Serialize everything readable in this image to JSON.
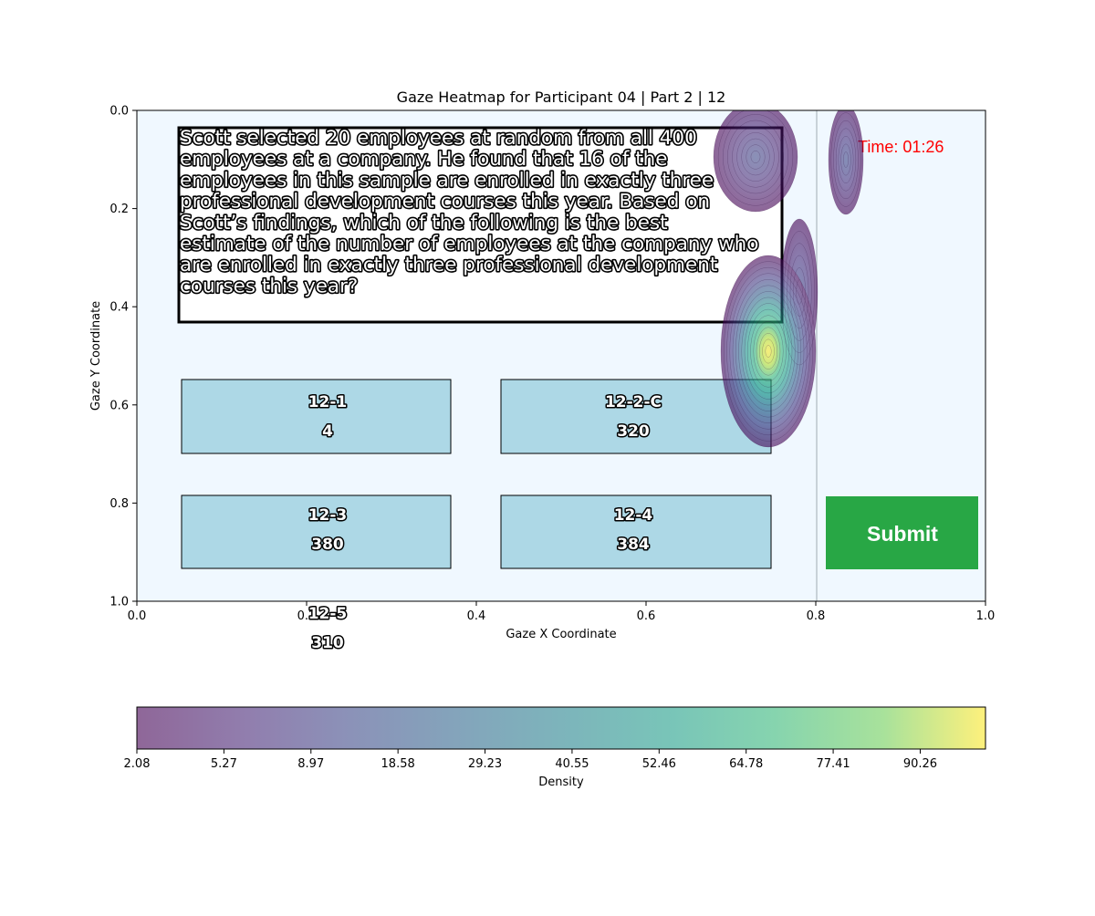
{
  "chart_data": {
    "type": "heatmap",
    "title": "Gaze Heatmap for Participant 04 | Part 2 | 12",
    "xlabel": "Gaze X Coordinate",
    "ylabel": "Gaze Y Coordinate",
    "xlim": [
      0.0,
      1.0
    ],
    "ylim": [
      1.0,
      0.0
    ],
    "x_ticks": [
      "0.0",
      "0.2",
      "0.4",
      "0.6",
      "0.8",
      "1.0"
    ],
    "y_ticks": [
      "0.0",
      "0.2",
      "0.4",
      "0.6",
      "0.8",
      "1.0"
    ],
    "colorbar": {
      "label": "Density",
      "ticks": [
        "2.08",
        "5.27",
        "8.97",
        "18.58",
        "29.23",
        "40.55",
        "52.46",
        "64.78",
        "77.41",
        "90.26"
      ],
      "colormap": "viridis",
      "alpha": 0.6
    },
    "density_peaks": [
      {
        "x": 0.74,
        "y": 0.48,
        "peak": 100
      },
      {
        "x": 0.72,
        "y": 0.1,
        "peak": 25
      },
      {
        "x": 0.835,
        "y": 0.1,
        "peak": 15
      },
      {
        "x": 0.78,
        "y": 0.35,
        "peak": 20
      }
    ]
  },
  "question": {
    "lines": [
      "Scott selected 20 employees at random from all 400",
      "employees at a company. He found that 16 of the",
      "employees in this sample are enrolled in exactly three",
      "professional development courses this year. Based on",
      "Scott’s findings, which of the following is the best",
      "estimate of the number of employees at the company who",
      "are enrolled in exactly three professional development",
      "courses this year?"
    ]
  },
  "timer": "Time: 01:26",
  "options": [
    {
      "id": "12-1",
      "value": "4"
    },
    {
      "id": "12-2-C",
      "value": "320"
    },
    {
      "id": "12-3",
      "value": "380"
    },
    {
      "id": "12-4",
      "value": "384"
    },
    {
      "id": "12-5",
      "value": "310"
    }
  ],
  "submit_label": "Submit",
  "colors": {
    "stimulus_background": "#f0f8ff",
    "option_fill": "#add8e6",
    "submit_fill": "#28a745",
    "timer_color": "#ff0000"
  }
}
